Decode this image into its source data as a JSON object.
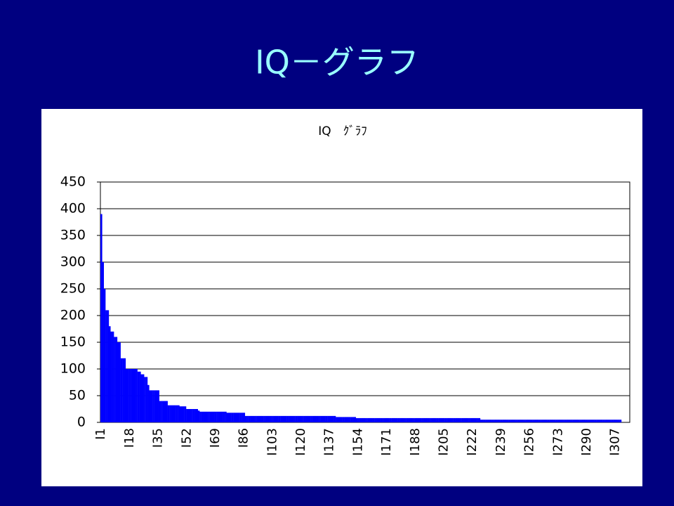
{
  "slide_title": "IQ－グラフ",
  "chart_data": {
    "type": "bar",
    "title": "IQ　ｸﾞﾗﾌ",
    "color": "#0000ff",
    "grid": true,
    "ylim": [
      0,
      450
    ],
    "yticks": [
      0,
      50,
      100,
      150,
      200,
      250,
      300,
      350,
      400,
      450
    ],
    "categories": [
      "I1",
      null,
      null,
      null,
      null,
      null,
      null,
      null,
      null,
      null,
      null,
      null,
      null,
      null,
      null,
      null,
      null,
      "I18",
      null,
      null,
      null,
      null,
      null,
      null,
      null,
      null,
      null,
      null,
      null,
      null,
      null,
      null,
      null,
      null,
      "I35",
      null,
      null,
      null,
      null,
      null,
      null,
      null,
      null,
      null,
      null,
      null,
      null,
      null,
      null,
      null,
      null,
      "I52",
      null,
      null,
      null,
      null,
      null,
      null,
      null,
      null,
      null,
      null,
      null,
      null,
      null,
      null,
      null,
      null,
      "I69",
      null,
      null,
      null,
      null,
      null,
      null,
      null,
      null,
      null,
      null,
      null,
      null,
      null,
      null,
      null,
      null,
      "I86",
      null,
      null,
      null,
      null,
      null,
      null,
      null,
      null,
      null,
      null,
      null,
      null,
      null,
      null,
      null,
      null,
      "I103",
      null,
      null,
      null,
      null,
      null,
      null,
      null,
      null,
      null,
      null,
      null,
      null,
      null,
      null,
      null,
      null,
      "I120",
      null,
      null,
      null,
      null,
      null,
      null,
      null,
      null,
      null,
      null,
      null,
      null,
      null,
      null,
      null,
      null,
      "I137",
      null,
      null,
      null,
      null,
      null,
      null,
      null,
      null,
      null,
      null,
      null,
      null,
      null,
      null,
      null,
      null,
      "I154",
      null,
      null,
      null,
      null,
      null,
      null,
      null,
      null,
      null,
      null,
      null,
      null,
      null,
      null,
      null,
      null,
      "I171",
      null,
      null,
      null,
      null,
      null,
      null,
      null,
      null,
      null,
      null,
      null,
      null,
      null,
      null,
      null,
      null,
      "I188",
      null,
      null,
      null,
      null,
      null,
      null,
      null,
      null,
      null,
      null,
      null,
      null,
      null,
      null,
      null,
      null,
      "I205",
      null,
      null,
      null,
      null,
      null,
      null,
      null,
      null,
      null,
      null,
      null,
      null,
      null,
      null,
      null,
      null,
      "I222",
      null,
      null,
      null,
      null,
      null,
      null,
      null,
      null,
      null,
      null,
      null,
      null,
      null,
      null,
      null,
      null,
      "I239",
      null,
      null,
      null,
      null,
      null,
      null,
      null,
      null,
      null,
      null,
      null,
      null,
      null,
      null,
      null,
      null,
      "I256",
      null,
      null,
      null,
      null,
      null,
      null,
      null,
      null,
      null,
      null,
      null,
      null,
      null,
      null,
      null,
      null,
      "I273",
      null,
      null,
      null,
      null,
      null,
      null,
      null,
      null,
      null,
      null,
      null,
      null,
      null,
      null,
      null,
      null,
      "I290",
      null,
      null,
      null,
      null,
      null,
      null,
      null,
      null,
      null,
      null,
      null,
      null,
      null,
      null,
      null,
      null,
      "I307",
      null,
      null,
      null,
      null,
      null,
      null,
      null,
      null
    ],
    "values": [
      390,
      300,
      250,
      210,
      210,
      180,
      170,
      170,
      160,
      160,
      150,
      150,
      120,
      120,
      120,
      100,
      100,
      100,
      100,
      100,
      100,
      100,
      95,
      95,
      90,
      90,
      85,
      85,
      70,
      60,
      60,
      60,
      60,
      60,
      60,
      40,
      40,
      40,
      40,
      40,
      32,
      32,
      32,
      32,
      32,
      32,
      32,
      30,
      30,
      30,
      30,
      25,
      25,
      25,
      25,
      25,
      25,
      25,
      22,
      20,
      20,
      20,
      20,
      20,
      20,
      20,
      20,
      20,
      20,
      20,
      20,
      20,
      20,
      20,
      20,
      18,
      18,
      18,
      18,
      18,
      18,
      18,
      18,
      18,
      18,
      18,
      12,
      12,
      12,
      12,
      12,
      12,
      12,
      12,
      12,
      12,
      12,
      12,
      12,
      12,
      12,
      12,
      12,
      12,
      12,
      12,
      12,
      12,
      12,
      12,
      12,
      12,
      12,
      12,
      12,
      12,
      12,
      12,
      12,
      12,
      12,
      12,
      12,
      12,
      12,
      12,
      12,
      12,
      12,
      12,
      12,
      12,
      12,
      12,
      12,
      12,
      12,
      12,
      12,
      12,
      10,
      10,
      10,
      10,
      10,
      10,
      10,
      10,
      10,
      10,
      10,
      10,
      8,
      8,
      8,
      8,
      8,
      8,
      8,
      8,
      8,
      8,
      8,
      8,
      8,
      8,
      8,
      8,
      8,
      8,
      8,
      8,
      8,
      8,
      8,
      8,
      8,
      8,
      8,
      8,
      8,
      8,
      8,
      8,
      8,
      8,
      8,
      8,
      8,
      8,
      8,
      8,
      8,
      8,
      8,
      8,
      8,
      8,
      8,
      8,
      8,
      8,
      8,
      8,
      8,
      8,
      8,
      8,
      8,
      8,
      8,
      8,
      8,
      8,
      8,
      8,
      8,
      8,
      8,
      8,
      8,
      8,
      8,
      8,
      8,
      8,
      5,
      5,
      5,
      5,
      5,
      5,
      5,
      5,
      5,
      5,
      5,
      5,
      5,
      5,
      5,
      5,
      5,
      5,
      5,
      5,
      5,
      5,
      5,
      5,
      5,
      5,
      5,
      5,
      5,
      5,
      5,
      5,
      5,
      5,
      5,
      5,
      5,
      5,
      5,
      5,
      5,
      5,
      5,
      5,
      5,
      5,
      5,
      5,
      5,
      5,
      5,
      5,
      5,
      5,
      5,
      5,
      5,
      5,
      5,
      5,
      5,
      5,
      5,
      5,
      5,
      5,
      5,
      5,
      5,
      5,
      5,
      5,
      5,
      5,
      5,
      5,
      5,
      5,
      5,
      5,
      5,
      5,
      5,
      5,
      0,
      0,
      0,
      0,
      0
    ]
  }
}
